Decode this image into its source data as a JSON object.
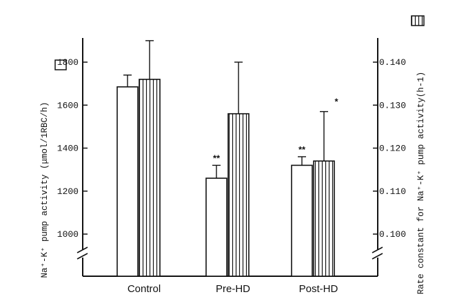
{
  "chart_data": {
    "type": "bar",
    "categories": [
      "Control",
      "Pre-HD",
      "Post-HD"
    ],
    "series": [
      {
        "axis": "left",
        "pattern": "open",
        "values": [
          1685,
          1260,
          1320
        ],
        "errors": [
          55,
          60,
          40
        ],
        "significance": [
          "",
          "**",
          "**"
        ]
      },
      {
        "axis": "right",
        "pattern": "vertical-hatch",
        "values": [
          0.136,
          0.128,
          0.117
        ],
        "errors": [
          0.009,
          0.012,
          0.0115
        ],
        "significance": [
          "",
          "",
          "*"
        ]
      }
    ],
    "y_left": {
      "label": "Na⁺-K⁺ pump activity (μmol/1RBC/h)",
      "ticks": [
        "1000",
        "1200",
        "1400",
        "1600",
        "1800"
      ],
      "tick_values": [
        1000,
        1200,
        1400,
        1600,
        1800
      ],
      "range": [
        1000,
        1800
      ],
      "axis_break": true
    },
    "y_right": {
      "label": "Rate constant for Na⁺-K⁺ pump activity(h-1)",
      "ticks": [
        "0.100",
        "0.110",
        "0.120",
        "0.130",
        "0.140"
      ],
      "tick_values": [
        0.1,
        0.11,
        0.12,
        0.13,
        0.14
      ],
      "range": [
        0.1,
        0.14
      ],
      "axis_break": true
    },
    "grid": false,
    "legend": "left-axis open box, right-axis hatched box"
  }
}
